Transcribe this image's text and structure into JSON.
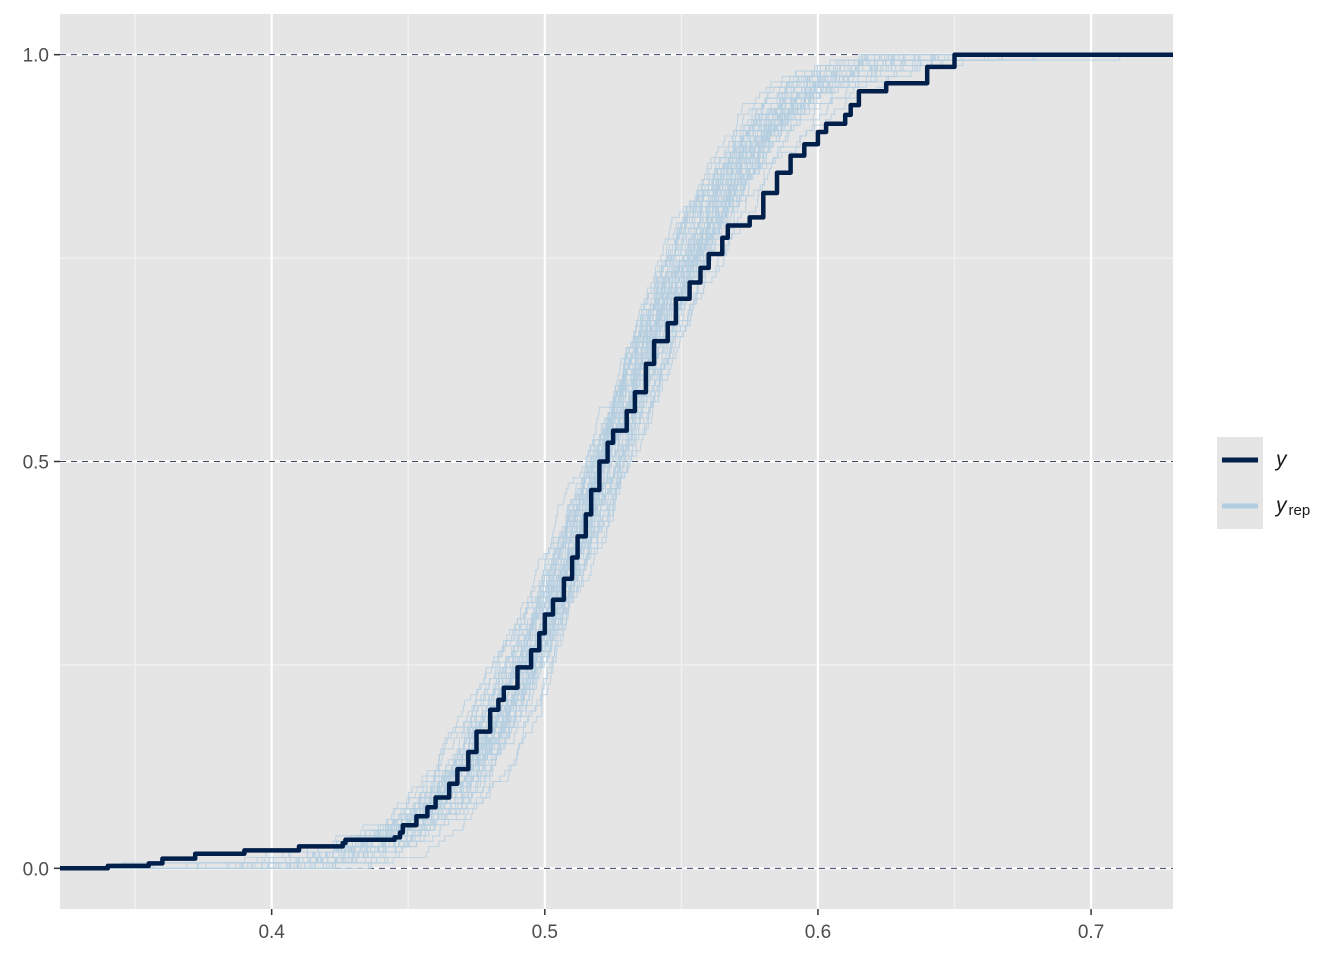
{
  "chart_data": {
    "type": "line",
    "title": "",
    "xlabel": "",
    "ylabel": "",
    "xlim": [
      0.3225,
      0.73
    ],
    "ylim": [
      -0.05,
      1.05
    ],
    "x_ticks": [
      0.4,
      0.5,
      0.6,
      0.7
    ],
    "x_tick_labels": [
      "0.4",
      "0.5",
      "0.6",
      "0.7"
    ],
    "y_ticks": [
      0.0,
      0.5,
      1.0
    ],
    "y_tick_labels": [
      "0.0",
      "0.5",
      "1.0"
    ],
    "grid": true,
    "reference_lines": [
      0.0,
      0.5,
      1.0
    ],
    "legend": {
      "position": "right",
      "entries": [
        {
          "label": "y",
          "color": "#011f4b"
        },
        {
          "label": "y",
          "subscript": "rep",
          "color": "#b3cde0"
        }
      ]
    },
    "colors": {
      "panel": "#e5e5e5",
      "grid": "#ffffff",
      "observed": "#011f4b",
      "replicated": "#b3cde0"
    },
    "series": [
      {
        "name": "y",
        "x": [
          0.3225,
          0.34,
          0.355,
          0.36,
          0.372,
          0.39,
          0.41,
          0.426,
          0.427,
          0.445,
          0.447,
          0.448,
          0.453,
          0.457,
          0.46,
          0.465,
          0.468,
          0.472,
          0.475,
          0.48,
          0.483,
          0.485,
          0.49,
          0.495,
          0.498,
          0.5,
          0.503,
          0.507,
          0.51,
          0.512,
          0.515,
          0.517,
          0.52,
          0.523,
          0.525,
          0.53,
          0.533,
          0.537,
          0.54,
          0.545,
          0.548,
          0.553,
          0.557,
          0.56,
          0.565,
          0.567,
          0.575,
          0.58,
          0.585,
          0.59,
          0.595,
          0.6,
          0.603,
          0.61,
          0.612,
          0.615,
          0.625,
          0.64,
          0.65,
          0.73
        ],
        "y": [
          0.0,
          0.003,
          0.006,
          0.012,
          0.018,
          0.022,
          0.027,
          0.031,
          0.035,
          0.038,
          0.044,
          0.053,
          0.064,
          0.075,
          0.087,
          0.104,
          0.122,
          0.143,
          0.168,
          0.195,
          0.207,
          0.222,
          0.247,
          0.268,
          0.289,
          0.312,
          0.33,
          0.356,
          0.382,
          0.408,
          0.435,
          0.465,
          0.5,
          0.523,
          0.538,
          0.562,
          0.585,
          0.62,
          0.648,
          0.67,
          0.7,
          0.72,
          0.738,
          0.755,
          0.775,
          0.79,
          0.8,
          0.83,
          0.855,
          0.876,
          0.89,
          0.905,
          0.915,
          0.926,
          0.938,
          0.955,
          0.965,
          0.985,
          1.0,
          1.0
        ]
      },
      {
        "name": "y_rep",
        "n_draws": 50,
        "mean": 0.522,
        "sd": 0.044
      }
    ]
  }
}
